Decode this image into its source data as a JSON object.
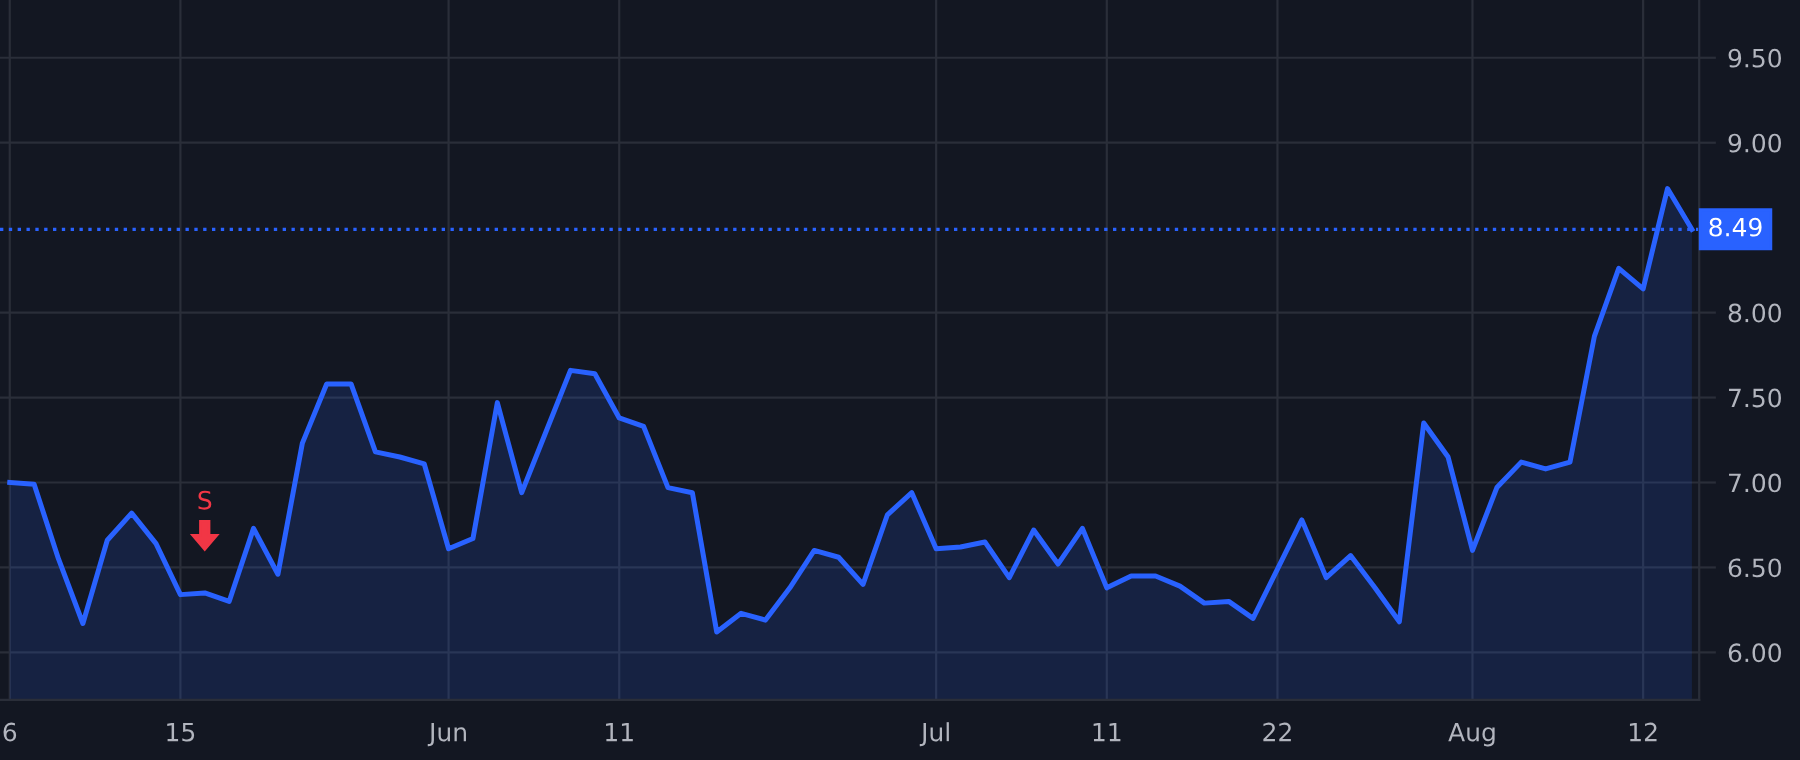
{
  "chart_data": {
    "type": "area",
    "categories": [
      "6",
      null,
      null,
      null,
      null,
      null,
      null,
      "15",
      null,
      null,
      null,
      null,
      null,
      null,
      null,
      null,
      null,
      null,
      "Jun",
      null,
      null,
      null,
      null,
      null,
      null,
      "11",
      null,
      null,
      null,
      null,
      null,
      null,
      null,
      null,
      null,
      null,
      null,
      null,
      "Jul",
      null,
      null,
      null,
      null,
      null,
      null,
      "11",
      null,
      null,
      null,
      null,
      null,
      null,
      "22",
      null,
      null,
      null,
      null,
      null,
      null,
      null,
      "Aug",
      null,
      null,
      null,
      null,
      null,
      null,
      "12",
      null,
      null
    ],
    "series": [
      {
        "color": "#2962ff",
        "values": [
          7.0,
          6.99,
          6.55,
          6.17,
          6.66,
          6.82,
          6.64,
          6.34,
          6.35,
          6.3,
          6.73,
          6.46,
          7.23,
          7.58,
          7.58,
          7.18,
          7.15,
          7.11,
          6.61,
          6.67,
          7.47,
          6.94,
          7.3,
          7.66,
          7.64,
          7.38,
          7.33,
          6.97,
          6.94,
          6.12,
          6.23,
          6.19,
          6.38,
          6.6,
          6.56,
          6.4,
          6.81,
          6.94,
          6.61,
          6.62,
          6.65,
          6.44,
          6.72,
          6.52,
          6.73,
          6.38,
          6.45,
          6.45,
          6.39,
          6.29,
          6.3,
          6.2,
          6.49,
          6.78,
          6.44,
          6.57,
          6.38,
          6.18,
          7.35,
          7.15,
          6.6,
          6.97,
          7.12,
          7.08,
          7.12,
          7.86,
          8.26,
          8.14,
          8.73,
          8.49
        ]
      }
    ],
    "ylim": [
      5.72,
      9.84
    ],
    "yticks": [
      {
        "value": 6,
        "label": "6.00"
      },
      {
        "value": 6.5,
        "label": "6.50"
      },
      {
        "value": 7,
        "label": "7.00"
      },
      {
        "value": 7.5,
        "label": "7.50"
      },
      {
        "value": 8,
        "label": "8.00"
      },
      {
        "value": 9,
        "label": "9.00"
      },
      {
        "value": 9.5,
        "label": "9.50"
      }
    ],
    "ref_lines": [
      {
        "axis": "y",
        "value": 8.49,
        "label": "8.49",
        "color": "#2962ff",
        "line_style": "dotted"
      }
    ],
    "annotations": [
      "S"
    ],
    "grid": true,
    "legend": false,
    "marker": "none",
    "line_style": "solid"
  }
}
